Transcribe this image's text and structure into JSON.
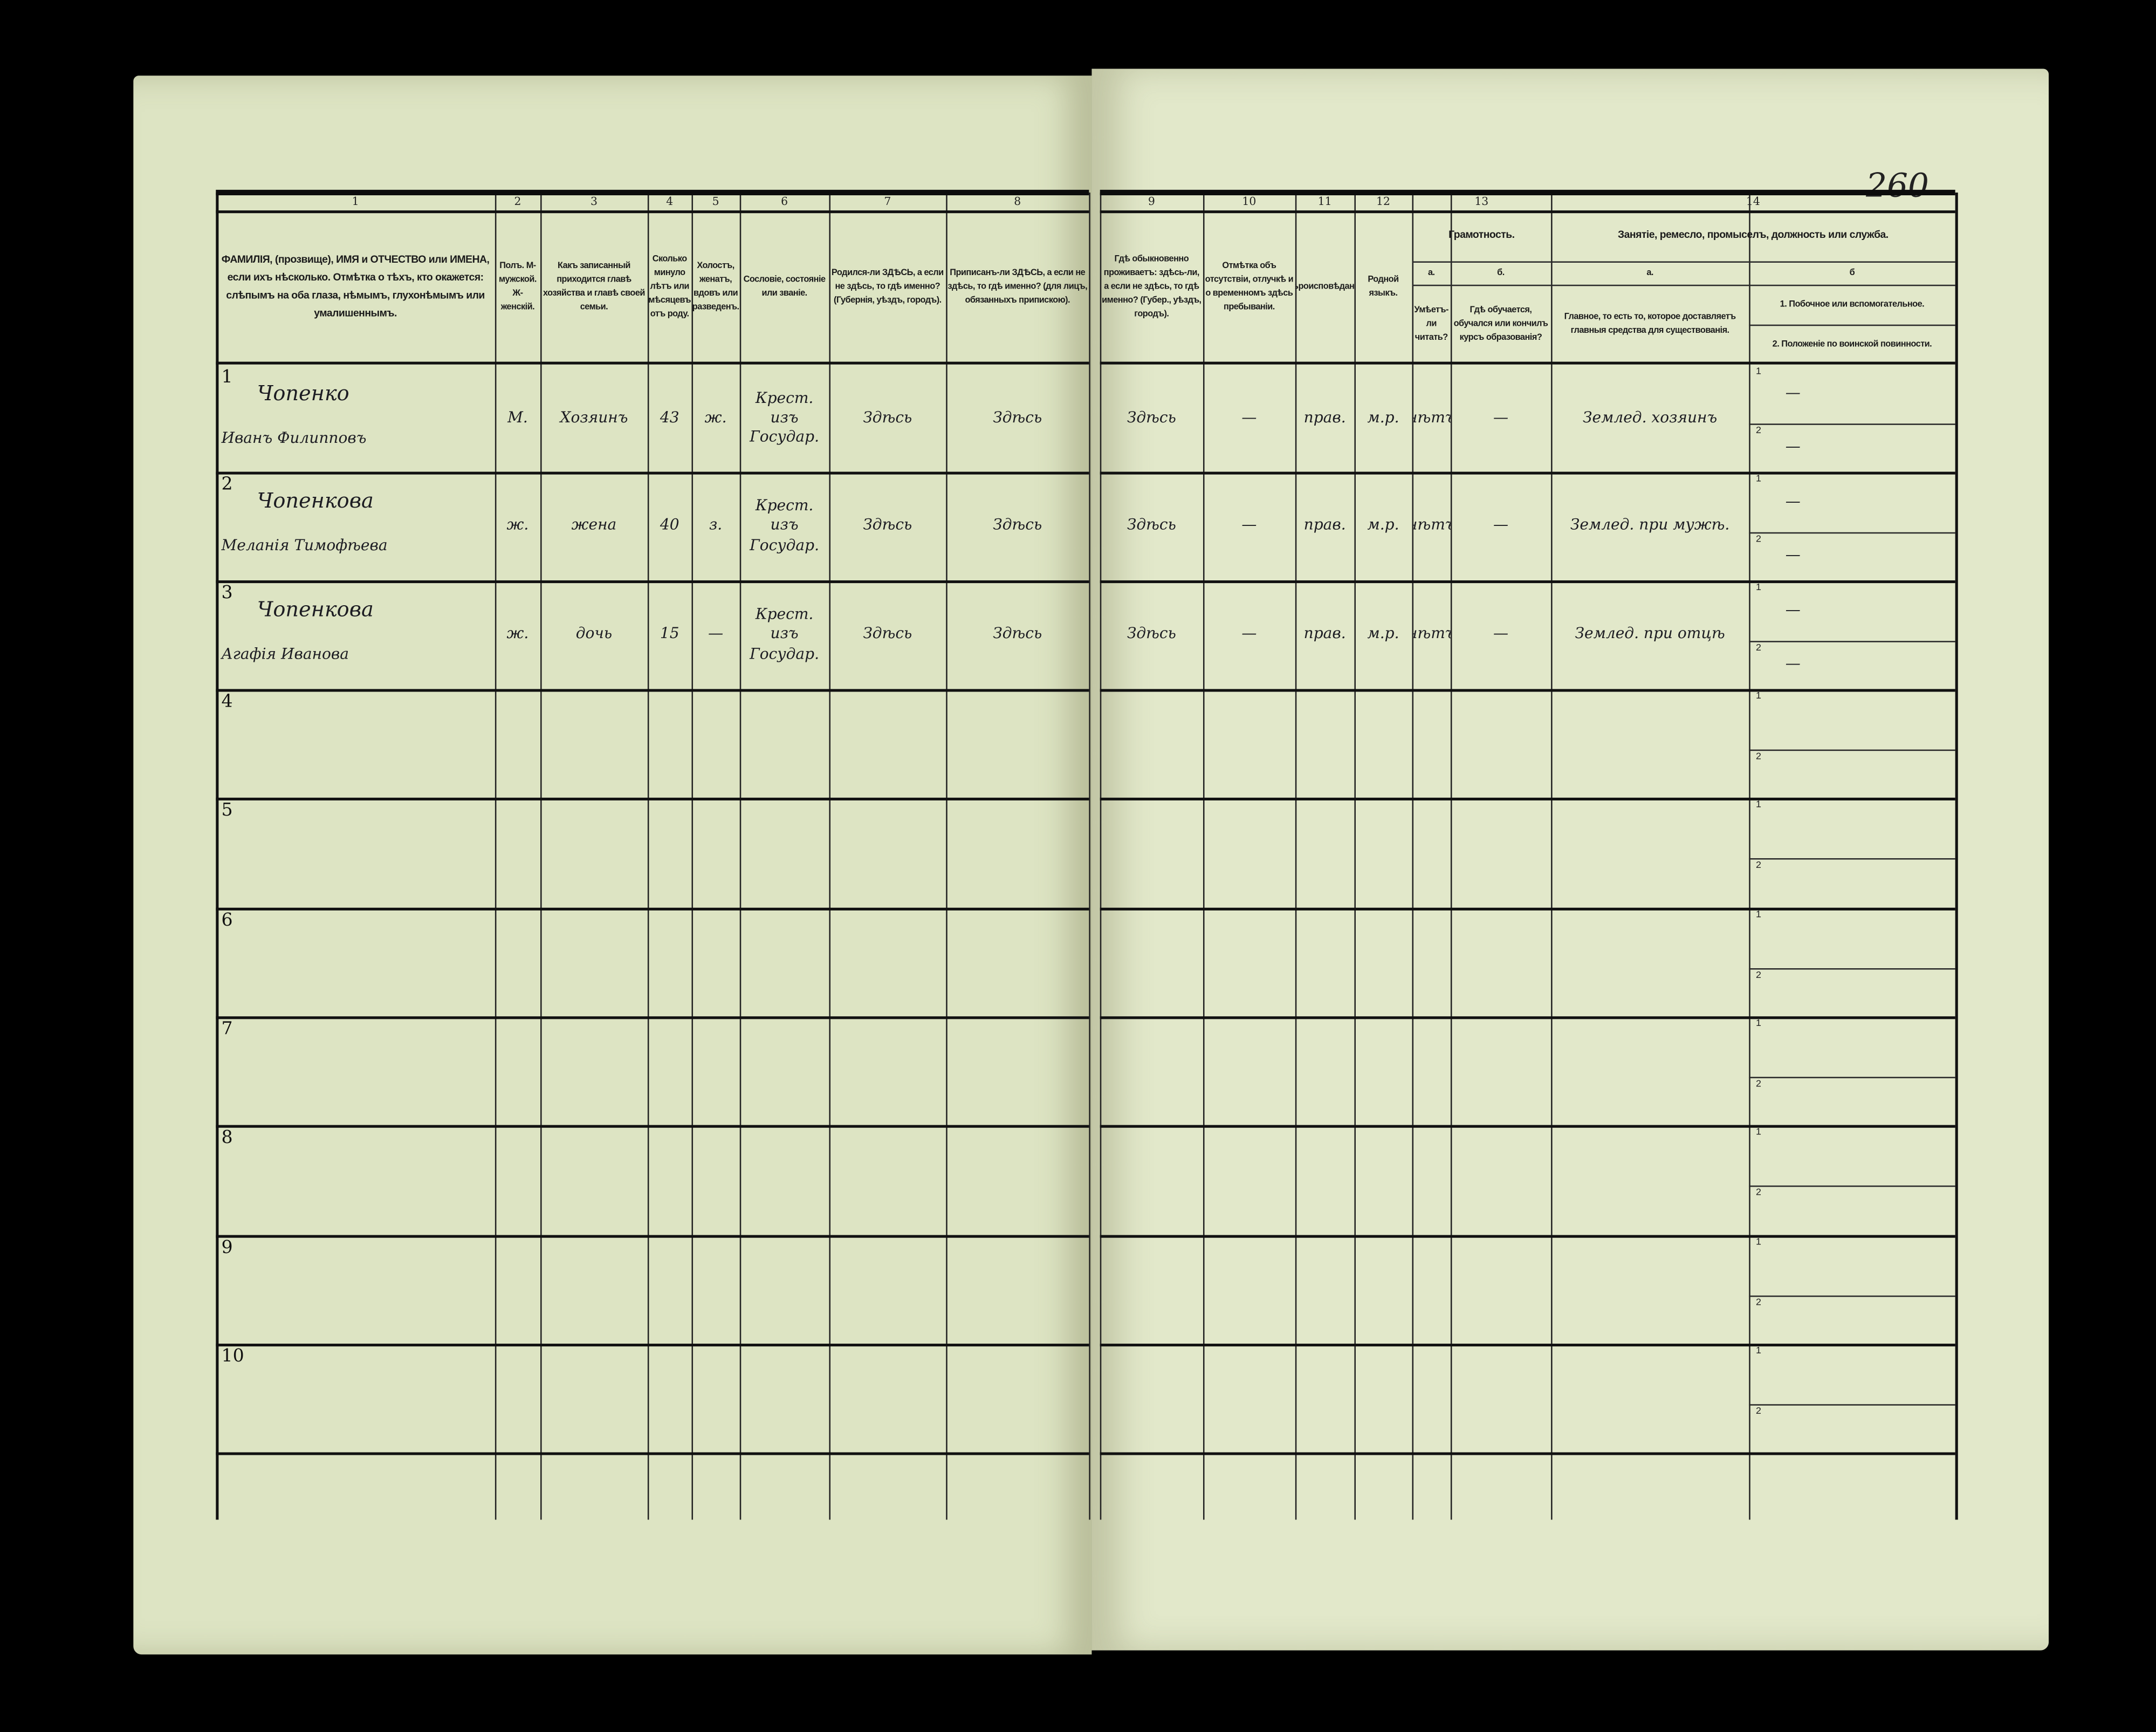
{
  "page_number": "260",
  "column_numbers": [
    "1",
    "2",
    "3",
    "4",
    "5",
    "6",
    "7",
    "8",
    "9",
    "10",
    "11",
    "12",
    "13",
    "14"
  ],
  "headers": {
    "col1": "ФАМИЛІЯ, (прозвище), ИМЯ и ОТЧЕСТВО или ИМЕНА, если ихъ нѣсколько. Отмѣтка о тѣхъ, кто окажется: слѣпымъ на оба глаза, нѣмымъ, глухонѣмымъ или умалишеннымъ.",
    "col2": "Полъ. М-мужской. Ж-женскій.",
    "col3": "Какъ записанный приходится главѣ хозяйства и главѣ своей семьи.",
    "col4": "Сколько минуло лѣтъ или мѣсяцевъ отъ роду.",
    "col5": "Холостъ, женатъ, вдовъ или разведенъ.",
    "col6": "Сословіе, состояніе или званіе.",
    "col7": "Родился-ли ЗДѢСЬ, а если не здѣсь, то гдѣ именно? (Губернія, уѣздъ, городъ).",
    "col8": "Приписанъ-ли ЗДѢСЬ, а если не здѣсь, то гдѣ именно? (для лицъ, обязанныхъ припискою).",
    "col9": "Гдѣ обыкновенно проживаетъ: здѣсь-ли, а если не здѣсь, то гдѣ именно? (Губер., уѣздъ, городъ).",
    "col10": "Отмѣтка объ отсутствіи, отлучкѣ и о временномъ здѣсь пребываніи.",
    "col11": "Вѣроисповѣданіе.",
    "col12": "Родной языкъ.",
    "col13": "Грамотность.",
    "col13a_label": "а.",
    "col13a": "Умѣетъ-ли читать?",
    "col13b_label": "б.",
    "col13b": "Гдѣ обучается, обучался или кончилъ курсъ образованія?",
    "col14": "Занятіе, ремесло, промыселъ, должность или служба.",
    "col14a_label": "а.",
    "col14a": "Главное, то есть то, которое доставляетъ главныя средства для существованія.",
    "col14b_label": "б",
    "col14b1": "1. Побочное или вспомогательное.",
    "col14b2": "2. Положеніе по воинской повинности."
  },
  "sub_labels": [
    "1",
    "2"
  ],
  "rows": [
    {
      "num": "1",
      "surname": "Чопенко",
      "given": "Иванъ Филипповъ",
      "sex": "М.",
      "relation": "Хозяинъ",
      "age": "43",
      "marital": "ж.",
      "estate": "Крест. изъ Государ.",
      "born": "Здѣсь",
      "registered": "Здѣсь",
      "resides": "Здѣсь",
      "absence": "—",
      "religion": "прав.",
      "language": "м.р.",
      "can_read": "нѣтъ",
      "schooling": "—",
      "occupation_main": "Землед. хозяинъ",
      "occupation_side": "—",
      "military": "—"
    },
    {
      "num": "2",
      "surname": "Чопенкова",
      "given": "Меланія Тимофѣева",
      "sex": "ж.",
      "relation": "жена",
      "age": "40",
      "marital": "з.",
      "estate": "Крест. изъ Государ.",
      "born": "Здѣсь",
      "registered": "Здѣсь",
      "resides": "Здѣсь",
      "absence": "—",
      "religion": "прав.",
      "language": "м.р.",
      "can_read": "нѣтъ",
      "schooling": "—",
      "occupation_main": "Землед. при мужѣ.",
      "occupation_side": "—",
      "military": "—"
    },
    {
      "num": "3",
      "surname": "Чопенкова",
      "given": "Агафія Иванова",
      "sex": "ж.",
      "relation": "дочь",
      "age": "15",
      "marital": "—",
      "estate": "Крест. изъ Государ.",
      "born": "Здѣсь",
      "registered": "Здѣсь",
      "resides": "Здѣсь",
      "absence": "—",
      "religion": "прав.",
      "language": "м.р.",
      "can_read": "нѣтъ",
      "schooling": "—",
      "occupation_main": "Землед. при отцѣ",
      "occupation_side": "—",
      "military": "—"
    }
  ],
  "empty_row_numbers": [
    "4",
    "5",
    "6",
    "7",
    "8",
    "9",
    "10"
  ],
  "colors": {
    "paper": "#dde4c3",
    "ink": "#1c1c22",
    "background": "#000000"
  }
}
